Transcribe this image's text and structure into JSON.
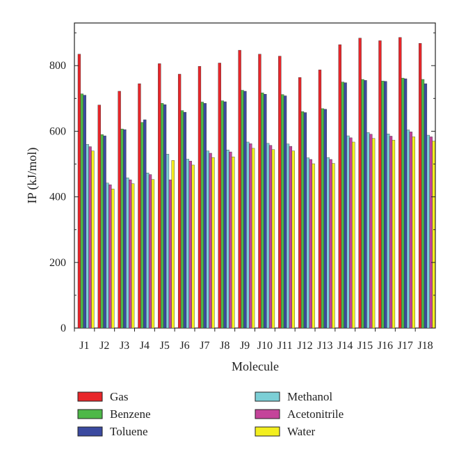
{
  "chart_data": {
    "type": "bar",
    "xlabel": "Molecule",
    "ylabel": "IP (kJ/mol)",
    "ylim": [
      0,
      930
    ],
    "yticks": [
      0,
      200,
      400,
      600,
      800
    ],
    "categories": [
      "J1",
      "J2",
      "J3",
      "J4",
      "J5",
      "J6",
      "J7",
      "J8",
      "J9",
      "J10",
      "J11",
      "J12",
      "J13",
      "J14",
      "J15",
      "J16",
      "J17",
      "J18"
    ],
    "series": [
      {
        "name": "Gas",
        "color": "#e8262a",
        "values": [
          835,
          680,
          722,
          745,
          806,
          774,
          798,
          808,
          847,
          835,
          829,
          764,
          787,
          864,
          884,
          876,
          886,
          868
        ]
      },
      {
        "name": "Benzene",
        "color": "#4db848",
        "values": [
          714,
          590,
          607,
          627,
          685,
          663,
          689,
          693,
          725,
          717,
          712,
          660,
          669,
          750,
          758,
          753,
          762,
          758
        ]
      },
      {
        "name": "Toluene",
        "color": "#3b4aa0",
        "values": [
          710,
          586,
          605,
          635,
          681,
          658,
          685,
          690,
          722,
          713,
          708,
          657,
          667,
          748,
          755,
          752,
          760,
          745
        ]
      },
      {
        "name": "Methanol",
        "color": "#7ccfd6",
        "values": [
          560,
          442,
          458,
          473,
          530,
          515,
          540,
          543,
          567,
          563,
          561,
          519,
          520,
          586,
          596,
          592,
          604,
          588
        ]
      },
      {
        "name": "Acetonitrile",
        "color": "#c4449a",
        "values": [
          553,
          437,
          452,
          468,
          452,
          509,
          533,
          537,
          562,
          557,
          554,
          514,
          514,
          580,
          591,
          585,
          598,
          583
        ]
      },
      {
        "name": "Water",
        "color": "#f3ef1f",
        "values": [
          540,
          424,
          440,
          453,
          511,
          497,
          520,
          522,
          548,
          544,
          540,
          501,
          502,
          567,
          578,
          573,
          583,
          570
        ]
      }
    ],
    "legend_position": "bottom",
    "grid": false
  }
}
